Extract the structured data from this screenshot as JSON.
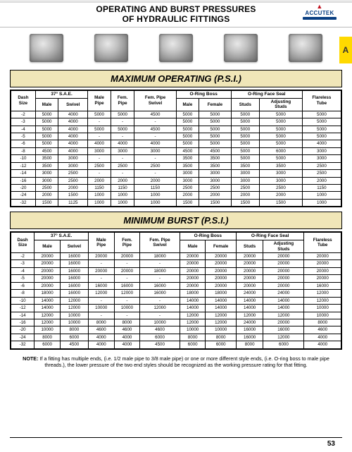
{
  "side_tab": "A",
  "header_title_line1": "OPERATING AND BURST PRESSURES",
  "header_title_line2": "OF HYDRAULIC FITTINGS",
  "brand": "ACCUTEK",
  "section1_title": "MAXIMUM OPERATING (P.S.I.)",
  "section2_title": "MINIMUM BURST (P.S.I.)",
  "columns": {
    "dash": "Dash\nSize",
    "sae": "37° S.A.E.",
    "sae_male": "Male",
    "sae_swivel": "Swivel",
    "male_pipe": "Male\nPipe",
    "fem_pipe": "Fem.\nPipe",
    "fem_pipe_swivel": "Fem. Pipe\nSwivel",
    "oring_boss": "O-Ring Boss",
    "ob_male": "Male",
    "ob_female": "Female",
    "ofs": "O-Ring Face Seal",
    "ofs_studs": "Studs",
    "ofs_adj": "Adjusting\nStuds",
    "flareless": "Flareless\nTube"
  },
  "operating": {
    "rows": [
      [
        "-2",
        "5000",
        "4000",
        "5000",
        "5000",
        "4500",
        "5000",
        "5000",
        "5000",
        "5000",
        "5000"
      ],
      [
        "-3",
        "5000",
        "4000",
        "-",
        "-",
        "-",
        "5000",
        "5000",
        "5000",
        "5000",
        "5000"
      ],
      [
        "-4",
        "5000",
        "4000",
        "5000",
        "5000",
        "4500",
        "5000",
        "5000",
        "5000",
        "5000",
        "5000"
      ],
      [
        "-5",
        "5000",
        "4000",
        "-",
        "-",
        "-",
        "5000",
        "5000",
        "5000",
        "5000",
        "5000"
      ],
      [
        "-6",
        "5000",
        "4000",
        "4000",
        "4000",
        "4000",
        "5000",
        "5000",
        "5000",
        "5000",
        "4000"
      ],
      [
        "-8",
        "4500",
        "4000",
        "3000",
        "3000",
        "3000",
        "4500",
        "4500",
        "5000",
        "6000",
        "3000"
      ],
      [
        "-10",
        "3500",
        "3000",
        "-",
        "-",
        "-",
        "3500",
        "3500",
        "5000",
        "5000",
        "3000"
      ],
      [
        "-12",
        "3500",
        "3000",
        "2500",
        "2500",
        "2500",
        "3500",
        "3500",
        "3500",
        "3500",
        "2500"
      ],
      [
        "-14",
        "3000",
        "2500",
        "-",
        "-",
        "-",
        "3000",
        "3000",
        "3000",
        "3000",
        "2500"
      ],
      [
        "-16",
        "3000",
        "2500",
        "2000",
        "2000",
        "2000",
        "3000",
        "3000",
        "3000",
        "3000",
        "2000"
      ],
      [
        "-20",
        "2500",
        "2000",
        "1150",
        "1150",
        "1150",
        "2500",
        "2500",
        "2500",
        "2500",
        "1150"
      ],
      [
        "-24",
        "2000",
        "1500",
        "1000",
        "1000",
        "1000",
        "2000",
        "2000",
        "2000",
        "2000",
        "1000"
      ],
      [
        "-32",
        "1500",
        "1125",
        "1000",
        "1000",
        "1000",
        "1500",
        "1500",
        "1500",
        "1500",
        "1000"
      ]
    ]
  },
  "burst": {
    "rows": [
      [
        "-2",
        "20000",
        "16000",
        "20000",
        "20000",
        "18000",
        "20000",
        "20000",
        "20000",
        "20000",
        "20000"
      ],
      [
        "-3",
        "20000",
        "16000",
        "-",
        "-",
        "-",
        "20000",
        "20000",
        "20000",
        "20000",
        "20000"
      ],
      [
        "-4",
        "20000",
        "16000",
        "20000",
        "20000",
        "18000",
        "20000",
        "20000",
        "20000",
        "20000",
        "20000"
      ],
      [
        "-5",
        "20000",
        "16000",
        "-",
        "-",
        "-",
        "20000",
        "20000",
        "20000",
        "20000",
        "20000"
      ],
      [
        "-6",
        "20000",
        "16000",
        "16000",
        "16000",
        "16000",
        "20000",
        "20000",
        "20000",
        "20000",
        "16000"
      ],
      [
        "-8",
        "18000",
        "16000",
        "12000",
        "12000",
        "16000",
        "18000",
        "18000",
        "24000",
        "24000",
        "12000"
      ],
      [
        "-10",
        "14000",
        "12000",
        "-",
        "-",
        "-",
        "14000",
        "14000",
        "14000",
        "14000",
        "12000"
      ],
      [
        "-12",
        "14000",
        "12000",
        "10000",
        "10000",
        "12000",
        "14000",
        "14000",
        "14000",
        "14000",
        "10000"
      ],
      [
        "-14",
        "12000",
        "10000",
        "-",
        "-",
        "-",
        "12000",
        "12000",
        "12000",
        "12000",
        "10000"
      ],
      [
        "-16",
        "12000",
        "10000",
        "8000",
        "8000",
        "10000",
        "12000",
        "12000",
        "24000",
        "20000",
        "8000"
      ],
      [
        "-20",
        "10000",
        "8000",
        "4600",
        "4600",
        "4600",
        "10000",
        "10000",
        "16000",
        "16000",
        "4600"
      ],
      [
        "-24",
        "8000",
        "6000",
        "4000",
        "4000",
        "6000",
        "8000",
        "8000",
        "16000",
        "12000",
        "4000"
      ],
      [
        "-32",
        "6000",
        "4500",
        "4000",
        "4000",
        "4500",
        "6000",
        "6000",
        "8000",
        "6000",
        "4000"
      ]
    ]
  },
  "note_label": "NOTE:",
  "note_text": "If a fitting has multiple ends, (i.e. 1/2 male pipe to 3/8 male pipe) or one or more different style ends, (i.e. O-ring boss to male pipe threads.), the lower pressure of the two end styles should be recognized as the working pressure rating for that fitting.",
  "page_number": "53",
  "colors": {
    "tab": "#ffd900",
    "section_bg": "#f0e6b8",
    "brand_blue": "#0a3f82",
    "brand_red": "#c1121f"
  }
}
